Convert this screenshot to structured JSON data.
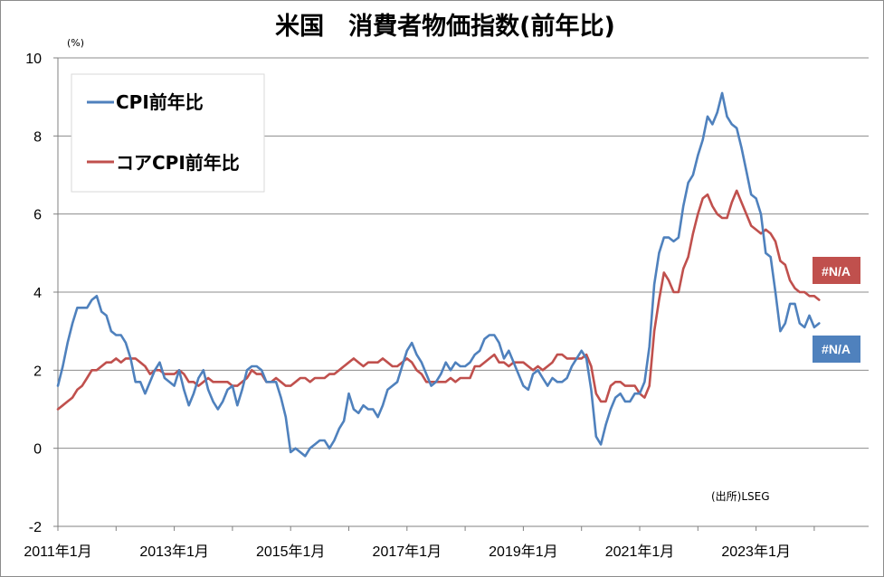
{
  "chart_data": {
    "type": "line",
    "title": "米国　消費者物価指数(前年比)",
    "ylabel": "(%)",
    "source": "(出所)LSEG",
    "ylim": [
      -2,
      10
    ],
    "yticks": [
      "10",
      "8",
      "6",
      "4",
      "2",
      "0",
      "-2"
    ],
    "xticks": [
      "2011年1月",
      "2013年1月",
      "2015年1月",
      "2017年1月",
      "2019年1月",
      "2021年1月",
      "2023年1月"
    ],
    "x_start": "2011-01",
    "grid": true,
    "legend_position": "top-left",
    "series": [
      {
        "name": "CPI前年比",
        "color": "#4F81BD",
        "end_label": "#N/A",
        "values": [
          1.6,
          2.1,
          2.7,
          3.2,
          3.6,
          3.6,
          3.6,
          3.8,
          3.9,
          3.5,
          3.4,
          3.0,
          2.9,
          2.9,
          2.7,
          2.3,
          1.7,
          1.7,
          1.4,
          1.7,
          2.0,
          2.2,
          1.8,
          1.7,
          1.6,
          2.0,
          1.5,
          1.1,
          1.4,
          1.8,
          2.0,
          1.5,
          1.2,
          1.0,
          1.2,
          1.5,
          1.6,
          1.1,
          1.5,
          2.0,
          2.1,
          2.1,
          2.0,
          1.7,
          1.7,
          1.7,
          1.3,
          0.8,
          -0.1,
          0.0,
          -0.1,
          -0.2,
          0.0,
          0.1,
          0.2,
          0.2,
          0.0,
          0.2,
          0.5,
          0.7,
          1.4,
          1.0,
          0.9,
          1.1,
          1.0,
          1.0,
          0.8,
          1.1,
          1.5,
          1.6,
          1.7,
          2.1,
          2.5,
          2.7,
          2.4,
          2.2,
          1.9,
          1.6,
          1.7,
          1.9,
          2.2,
          2.0,
          2.2,
          2.1,
          2.1,
          2.2,
          2.4,
          2.5,
          2.8,
          2.9,
          2.9,
          2.7,
          2.3,
          2.5,
          2.2,
          1.9,
          1.6,
          1.5,
          1.9,
          2.0,
          1.8,
          1.6,
          1.8,
          1.7,
          1.7,
          1.8,
          2.1,
          2.3,
          2.5,
          2.3,
          1.5,
          0.3,
          0.1,
          0.6,
          1.0,
          1.3,
          1.4,
          1.2,
          1.2,
          1.4,
          1.4,
          1.7,
          2.6,
          4.2,
          5.0,
          5.4,
          5.4,
          5.3,
          5.4,
          6.2,
          6.8,
          7.0,
          7.5,
          7.9,
          8.5,
          8.3,
          8.6,
          9.1,
          8.5,
          8.3,
          8.2,
          7.7,
          7.1,
          6.5,
          6.4,
          6.0,
          5.0,
          4.9,
          4.0,
          3.0,
          3.2,
          3.7,
          3.7,
          3.2,
          3.1,
          3.4,
          3.1,
          3.2
        ]
      },
      {
        "name": "コアCPI前年比",
        "color": "#C0504D",
        "end_label": "#N/A",
        "values": [
          1.0,
          1.1,
          1.2,
          1.3,
          1.5,
          1.6,
          1.8,
          2.0,
          2.0,
          2.1,
          2.2,
          2.2,
          2.3,
          2.2,
          2.3,
          2.3,
          2.3,
          2.2,
          2.1,
          1.9,
          2.0,
          2.0,
          1.9,
          1.9,
          1.9,
          2.0,
          1.9,
          1.7,
          1.7,
          1.6,
          1.7,
          1.8,
          1.7,
          1.7,
          1.7,
          1.7,
          1.6,
          1.6,
          1.7,
          1.8,
          2.0,
          1.9,
          1.9,
          1.7,
          1.7,
          1.8,
          1.7,
          1.6,
          1.6,
          1.7,
          1.8,
          1.8,
          1.7,
          1.8,
          1.8,
          1.8,
          1.9,
          1.9,
          2.0,
          2.1,
          2.2,
          2.3,
          2.2,
          2.1,
          2.2,
          2.2,
          2.2,
          2.3,
          2.2,
          2.1,
          2.1,
          2.2,
          2.3,
          2.2,
          2.0,
          1.9,
          1.7,
          1.7,
          1.7,
          1.7,
          1.7,
          1.8,
          1.7,
          1.8,
          1.8,
          1.8,
          2.1,
          2.1,
          2.2,
          2.3,
          2.4,
          2.2,
          2.2,
          2.1,
          2.2,
          2.2,
          2.2,
          2.1,
          2.0,
          2.1,
          2.0,
          2.1,
          2.2,
          2.4,
          2.4,
          2.3,
          2.3,
          2.3,
          2.3,
          2.4,
          2.1,
          1.4,
          1.2,
          1.2,
          1.6,
          1.7,
          1.7,
          1.6,
          1.6,
          1.6,
          1.4,
          1.3,
          1.6,
          3.0,
          3.8,
          4.5,
          4.3,
          4.0,
          4.0,
          4.6,
          4.9,
          5.5,
          6.0,
          6.4,
          6.5,
          6.2,
          6.0,
          5.9,
          5.9,
          6.3,
          6.6,
          6.3,
          6.0,
          5.7,
          5.6,
          5.5,
          5.6,
          5.5,
          5.3,
          4.8,
          4.7,
          4.3,
          4.1,
          4.0,
          4.0,
          3.9,
          3.9,
          3.8
        ]
      }
    ]
  }
}
